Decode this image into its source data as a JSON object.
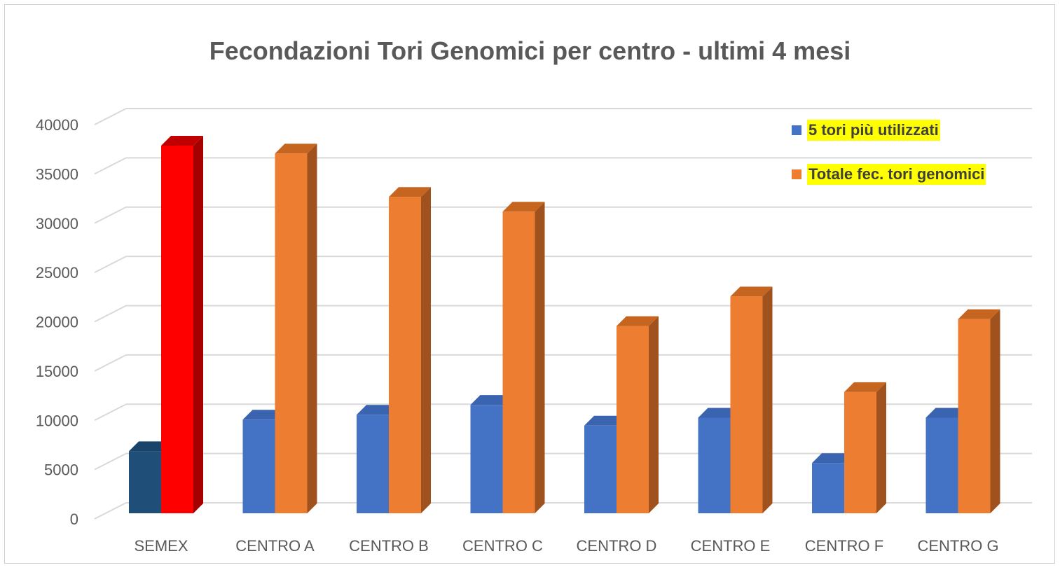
{
  "colors": {
    "series1": "#4472c4",
    "series1_side": "#2f5597",
    "series1_top": "#3b64b0",
    "series2": "#ed7d31",
    "series2_side": "#a0521e",
    "series2_top": "#c5651f",
    "semex_series1": "#1f4e79",
    "semex_series1_side": "#163a5c",
    "semex_series1_top": "#1a4369",
    "semex_series2": "#ff0000",
    "semex_series2_side": "#a50000",
    "semex_series2_top": "#c00000",
    "grid": "#d9d9d9",
    "text": "#595959",
    "legend_highlight": "#ffff00"
  },
  "chart_data": {
    "type": "bar",
    "title": "Fecondazioni Tori Genomici per centro - ultimi 4 mesi",
    "xlabel": "",
    "ylabel": "",
    "ylim": [
      0,
      40000
    ],
    "yticks": [
      "0",
      "5000",
      "10000",
      "15000",
      "20000",
      "25000",
      "30000",
      "35000",
      "40000"
    ],
    "grid": true,
    "legend_position": "top-right",
    "categories": [
      "SEMEX",
      "CENTRO A",
      "CENTRO B",
      "CENTRO C",
      "CENTRO D",
      "CENTRO E",
      "CENTRO F",
      "CENTRO G"
    ],
    "series": [
      {
        "name": "5 tori più utilizzati",
        "values": [
          6300,
          9500,
          10000,
          11000,
          8900,
          9700,
          5100,
          9700
        ]
      },
      {
        "name": "Totale fec. tori genomici",
        "values": [
          37300,
          36500,
          32100,
          30600,
          19000,
          22000,
          12300,
          19700
        ]
      }
    ]
  }
}
